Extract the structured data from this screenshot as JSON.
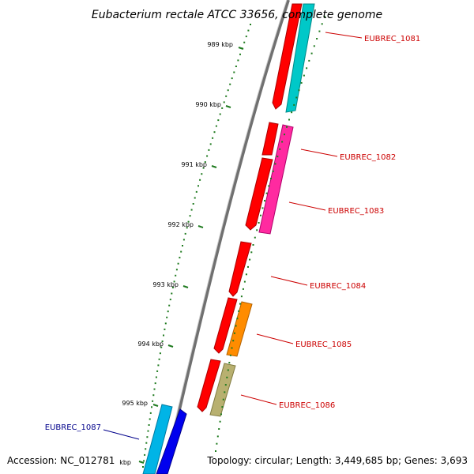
{
  "title": "Eubacterium rectale ATCC 33656, complete genome",
  "footer": {
    "accession": "Accession: NC_012781",
    "summary": "Topology: circular; Length: 3,449,685 bp; Genes: 3,693"
  },
  "ticks": [
    "989 kbp",
    "990 kbp",
    "991 kbp",
    "992 kbp",
    "993 kbp",
    "994 kbp",
    "995 kbp",
    "kbp"
  ],
  "genes": [
    {
      "id": "EUBREC_1081",
      "color": "#00c8c8",
      "label_color": "#cc0000"
    },
    {
      "id": "EUBREC_1082",
      "color": "#ff2aa0",
      "label_color": "#cc0000"
    },
    {
      "id": "EUBREC_1083",
      "color": "#ff2aa0",
      "label_color": "#cc0000"
    },
    {
      "id": "EUBREC_1084",
      "color": "#ff0000",
      "label_color": "#cc0000"
    },
    {
      "id": "EUBREC_1085",
      "color": "#ff8c00",
      "label_color": "#cc0000"
    },
    {
      "id": "EUBREC_1086",
      "color": "#b8b070",
      "label_color": "#cc0000"
    },
    {
      "id": "EUBREC_1087",
      "color": "#00b4e6",
      "label_color": "#00008b"
    }
  ],
  "colors": {
    "backbone": "#808080",
    "cds": "#ff0000",
    "tick": "#1e7a1e"
  }
}
